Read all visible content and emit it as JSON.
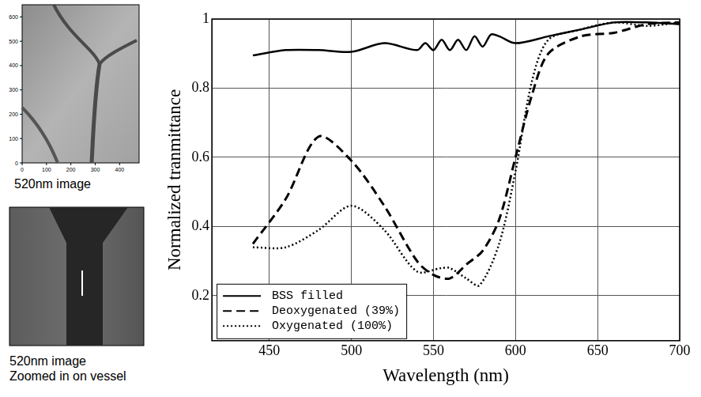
{
  "chart_data": {
    "type": "line",
    "x_label": "Wavelength (nm)",
    "y_label": "Normalized tranmittance",
    "xlim": [
      415,
      700
    ],
    "xticks": [
      450,
      500,
      550,
      600,
      650,
      700
    ],
    "ylim": [
      0.07,
      1
    ],
    "yticks": [
      0.2,
      0.4,
      0.6,
      0.8,
      1
    ],
    "grid": true,
    "legend": "lower left",
    "series": [
      {
        "name": "BSS filled",
        "color": "#000000",
        "line_style": "solid",
        "x": [
          440,
          460,
          480,
          500,
          520,
          540,
          545,
          550,
          555,
          560,
          565,
          570,
          575,
          580,
          585,
          590,
          600,
          620,
          640,
          660,
          680,
          700
        ],
        "values": [
          0.895,
          0.91,
          0.91,
          0.905,
          0.93,
          0.91,
          0.93,
          0.91,
          0.94,
          0.91,
          0.94,
          0.91,
          0.95,
          0.92,
          0.955,
          0.95,
          0.93,
          0.95,
          0.97,
          0.99,
          0.99,
          0.985
        ]
      },
      {
        "name": "Deoxygenated (39%)",
        "color": "#000000",
        "line_style": "dashed",
        "x": [
          440,
          460,
          480,
          500,
          520,
          540,
          550,
          560,
          570,
          580,
          590,
          600,
          610,
          620,
          640,
          660,
          680,
          700
        ],
        "values": [
          0.35,
          0.48,
          0.66,
          0.59,
          0.46,
          0.3,
          0.26,
          0.25,
          0.29,
          0.33,
          0.42,
          0.6,
          0.78,
          0.9,
          0.95,
          0.96,
          0.985,
          0.99
        ]
      },
      {
        "name": "Oxygenated (100%)",
        "color": "#000000",
        "line_style": "dotted",
        "x": [
          440,
          460,
          480,
          500,
          520,
          540,
          555,
          560,
          570,
          578,
          590,
          600,
          610,
          620,
          640,
          660,
          680,
          700
        ],
        "values": [
          0.34,
          0.34,
          0.39,
          0.46,
          0.39,
          0.27,
          0.28,
          0.28,
          0.25,
          0.23,
          0.35,
          0.56,
          0.82,
          0.94,
          0.97,
          0.99,
          0.98,
          0.99
        ]
      }
    ]
  },
  "images": [
    {
      "caption": [
        "520nm image"
      ],
      "xlim": [
        0,
        480
      ],
      "ylim": [
        0,
        650
      ],
      "xticks": [
        0,
        100,
        200,
        300,
        400
      ],
      "yticks": [
        0,
        100,
        200,
        300,
        400,
        500,
        600
      ]
    },
    {
      "caption": [
        "520nm image",
        "Zoomed in on vessel"
      ]
    }
  ]
}
